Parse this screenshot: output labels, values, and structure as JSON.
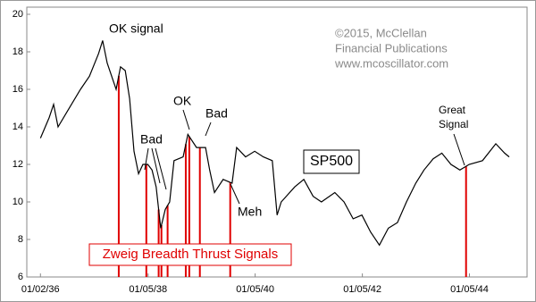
{
  "chart_data": {
    "type": "line",
    "series": [
      {
        "name": "SP500",
        "color": "#000000",
        "x": [
          "01/02/36",
          "03/02/36",
          "04/01/36",
          "05/01/36",
          "07/01/36",
          "10/01/36",
          "12/01/36",
          "02/01/37",
          "03/01/37",
          "04/01/37",
          "06/01/37",
          "07/01/37",
          "08/02/37",
          "09/01/37",
          "10/01/37",
          "11/01/37",
          "12/01/37",
          "01/03/38",
          "02/01/38",
          "03/01/38",
          "04/01/38",
          "05/02/38",
          "06/01/38",
          "07/01/38",
          "09/01/38",
          "10/03/38",
          "12/01/38",
          "02/01/39",
          "03/01/39",
          "04/03/39",
          "06/01/39",
          "08/01/39",
          "09/01/39",
          "11/01/39",
          "01/02/40",
          "03/01/40",
          "05/01/40",
          "06/03/40",
          "07/01/40",
          "10/01/40",
          "12/02/40",
          "02/03/41",
          "04/01/41",
          "07/01/41",
          "09/02/41",
          "11/03/41",
          "01/02/42",
          "03/02/42",
          "05/01/42",
          "07/01/42",
          "09/01/42",
          "11/02/42",
          "01/04/43",
          "03/01/43",
          "05/03/43",
          "07/01/43",
          "09/01/43",
          "11/01/43",
          "01/03/44",
          "04/03/44",
          "07/03/44",
          "09/01/44",
          "10/02/44"
        ],
        "values": [
          13.4,
          14.5,
          15.2,
          14.0,
          14.8,
          16.0,
          16.7,
          17.9,
          18.6,
          17.4,
          16.0,
          17.2,
          17.0,
          15.5,
          12.7,
          11.5,
          12.0,
          12.0,
          11.7,
          10.8,
          8.6,
          9.6,
          10.0,
          12.2,
          12.4,
          13.6,
          12.9,
          12.9,
          11.7,
          10.5,
          11.2,
          11.0,
          12.9,
          12.4,
          12.7,
          12.4,
          12.2,
          9.3,
          10.0,
          10.8,
          11.2,
          10.3,
          10.0,
          10.5,
          10.0,
          9.1,
          9.3,
          8.4,
          7.7,
          8.6,
          8.9,
          10.0,
          11.0,
          11.7,
          12.3,
          12.6,
          12.0,
          11.7,
          12.0,
          12.2,
          13.1,
          12.6,
          12.4
        ]
      }
    ],
    "signals": {
      "name": "Zweig Breadth Thrust Signals",
      "color": "#e00000",
      "x": [
        "06/19/37",
        "12/24/37",
        "03/18/38",
        "04/06/38",
        "05/18/38",
        "09/19/38",
        "10/13/38",
        "12/24/38",
        "07/19/39",
        "12/13/43"
      ]
    },
    "xlim": [
      "10/01/35",
      "02/01/45"
    ],
    "xticks": [
      "01/02/36",
      "01/05/38",
      "01/05/40",
      "01/05/42",
      "01/05/44"
    ],
    "ylim": [
      6,
      20
    ],
    "yticks": [
      6,
      8,
      10,
      12,
      14,
      16,
      18,
      20
    ],
    "annotations": [
      "OK signal",
      "Bad",
      "OK",
      "Bad",
      "Meh",
      "Great",
      "Signal"
    ],
    "copyright": [
      "©2015, McClellan",
      "Financial Publications",
      "www.mcoscillator.com"
    ]
  }
}
